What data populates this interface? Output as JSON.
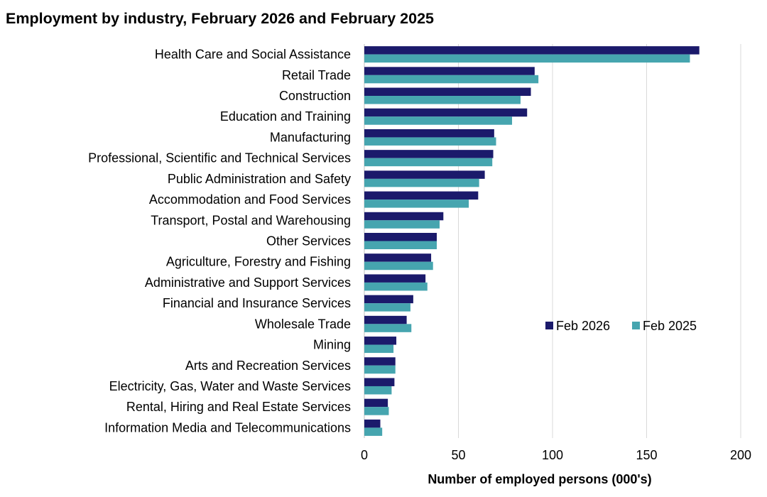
{
  "chart_data": {
    "type": "bar",
    "orientation": "horizontal",
    "title": "Employment by industry, February 2026 and February 2025",
    "xlabel": "Number of employed persons (000's)",
    "ylabel": "",
    "xlim": [
      0,
      200
    ],
    "xticks": [
      "0",
      "50",
      "100",
      "150",
      "200"
    ],
    "grid": true,
    "legend_position": "right",
    "categories": [
      "Health Care and Social Assistance",
      "Retail Trade",
      "Construction",
      "Education and Training",
      "Manufacturing",
      "Professional, Scientific and Technical Services",
      "Public Administration and Safety",
      "Accommodation and Food Services",
      "Transport, Postal and Warehousing",
      "Other Services",
      "Agriculture, Forestry and Fishing",
      "Administrative and Support Services",
      "Financial and Insurance Services",
      "Wholesale Trade",
      "Mining",
      "Arts and Recreation Services",
      "Electricity, Gas, Water and Waste Services",
      "Rental, Hiring and Real Estate Services",
      "Information Media and Telecommunications"
    ],
    "series": [
      {
        "name": "Feb 2026",
        "color": "#1b1a6b",
        "values": [
          178,
          90.5,
          88.5,
          86.5,
          69,
          68.5,
          64,
          60.5,
          42,
          38.5,
          35.5,
          32.5,
          26,
          22.5,
          17,
          16.5,
          16,
          12.5,
          8.5
        ]
      },
      {
        "name": "Feb 2025",
        "color": "#46a5af",
        "values": [
          173,
          92.5,
          83,
          78.5,
          70,
          68,
          61,
          55.5,
          40,
          38.5,
          36.5,
          33.5,
          24.5,
          25,
          15.5,
          16.5,
          14.5,
          13,
          9.5
        ]
      }
    ]
  }
}
